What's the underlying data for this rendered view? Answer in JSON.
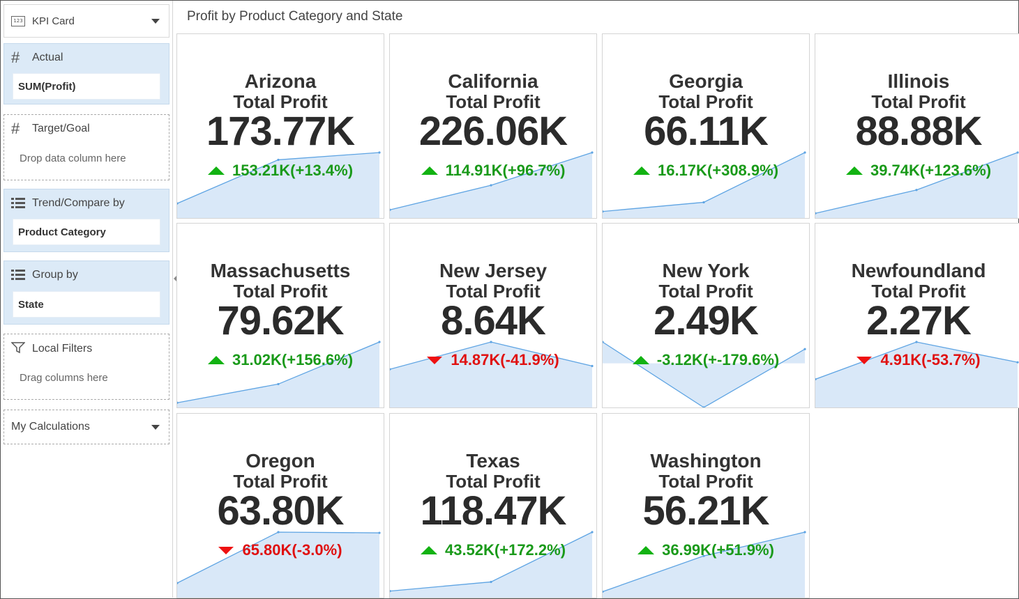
{
  "panel": {
    "viz_type": {
      "icon_text": "123",
      "label": "KPI Card"
    },
    "actual": {
      "label": "Actual",
      "value": "SUM(Profit)"
    },
    "target": {
      "label": "Target/Goal",
      "placeholder": "Drop data column here"
    },
    "trend": {
      "label": "Trend/Compare by",
      "value": "Product Category"
    },
    "group": {
      "label": "Group by",
      "value": "State"
    },
    "filters": {
      "label": "Local Filters",
      "placeholder": "Drag columns here"
    },
    "calculations": {
      "label": "My Calculations"
    }
  },
  "title": "Profit by Product Category and State",
  "colors": {
    "up": "#1a9a1a",
    "down": "#e01010",
    "spark_line": "#5ea4e3",
    "spark_fill": "#d9e8f8"
  },
  "cards": [
    {
      "state": "Arizona",
      "metric": "Total Profit",
      "value": "173.77K",
      "delta": "153.21K(+13.4%)",
      "direction": "up",
      "trend": [
        1,
        4,
        4.5
      ]
    },
    {
      "state": "California",
      "metric": "Total Profit",
      "value": "226.06K",
      "delta": "114.91K(+96.7%)",
      "direction": "up",
      "trend": [
        0.5,
        2,
        4
      ]
    },
    {
      "state": "Georgia",
      "metric": "Total Profit",
      "value": "66.11K",
      "delta": "16.17K(+308.9%)",
      "direction": "up",
      "trend": [
        0.5,
        1.2,
        5
      ]
    },
    {
      "state": "Illinois",
      "metric": "Total Profit",
      "value": "88.88K",
      "delta": "39.74K(+123.6%)",
      "direction": "up",
      "trend": [
        0.5,
        3,
        7
      ]
    },
    {
      "state": "Massachusetts",
      "metric": "Total Profit",
      "value": "79.62K",
      "delta": "31.02K(+156.6%)",
      "direction": "up",
      "trend": [
        0.5,
        2.5,
        7
      ]
    },
    {
      "state": "New Jersey",
      "metric": "Total Profit",
      "value": "8.64K",
      "delta": "14.87K(-41.9%)",
      "direction": "down",
      "trend": [
        3.5,
        6,
        3.8
      ]
    },
    {
      "state": "New York",
      "metric": "Total Profit",
      "value": "2.49K",
      "delta": "-3.12K(+-179.6%)",
      "direction": "up",
      "trend": [
        3,
        -6.2,
        2
      ]
    },
    {
      "state": "Newfoundland",
      "metric": "Total Profit",
      "value": "2.27K",
      "delta": "4.91K(-53.7%)",
      "direction": "down",
      "trend": [
        2.5,
        5.8,
        4
      ]
    },
    {
      "state": "Oregon",
      "metric": "Total Profit",
      "value": "63.80K",
      "delta": "65.80K(-3.0%)",
      "direction": "down",
      "trend": [
        1,
        4.5,
        4.45
      ]
    },
    {
      "state": "Texas",
      "metric": "Total Profit",
      "value": "118.47K",
      "delta": "43.52K(+172.2%)",
      "direction": "up",
      "trend": [
        0.5,
        1.2,
        5
      ]
    },
    {
      "state": "Washington",
      "metric": "Total Profit",
      "value": "56.21K",
      "delta": "36.99K(+51.9%)",
      "direction": "up",
      "trend": [
        0.5,
        3.5,
        5.5
      ]
    }
  ]
}
